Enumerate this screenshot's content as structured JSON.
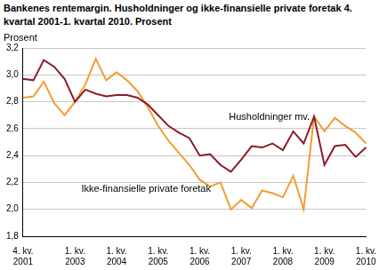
{
  "chart_data": {
    "type": "line",
    "title": "Bankenes rentemargin. Husholdninger og ikke-finansielle private foretak 4. kvartal 2001-1. kvartal 2010. Prosent",
    "y_label": "Prosent",
    "categories": [
      "4. kv. 2001",
      null,
      null,
      null,
      null,
      "1. kv. 2003",
      null,
      null,
      null,
      "1. kv. 2004",
      null,
      null,
      null,
      "1. kv. 2005",
      null,
      null,
      null,
      "1. kv. 2006",
      null,
      null,
      null,
      "1. kv. 2007",
      null,
      null,
      null,
      "1. kv. 2008",
      null,
      null,
      null,
      "1. kv. 2009",
      null,
      null,
      null,
      "1. kv. 2010"
    ],
    "series": [
      {
        "name": "Husholdninger mv.",
        "color": "#8b1c2a",
        "values": [
          2.97,
          2.96,
          3.11,
          3.06,
          2.97,
          2.8,
          2.89,
          2.86,
          2.84,
          2.85,
          2.85,
          2.83,
          2.78,
          2.7,
          2.62,
          2.57,
          2.53,
          2.4,
          2.41,
          2.33,
          2.28,
          2.37,
          2.47,
          2.46,
          2.49,
          2.44,
          2.58,
          2.49,
          2.69,
          2.33,
          2.47,
          2.48,
          2.39,
          2.46
        ]
      },
      {
        "name": "Ikke-finansielle private foretak",
        "color": "#f39c32",
        "values": [
          2.83,
          2.84,
          2.95,
          2.79,
          2.7,
          2.8,
          2.93,
          3.12,
          2.96,
          3.02,
          2.96,
          2.88,
          2.76,
          2.62,
          2.51,
          2.42,
          2.33,
          2.22,
          2.17,
          2.2,
          2.0,
          2.07,
          2.01,
          2.14,
          2.12,
          2.09,
          2.25,
          2.0,
          2.69,
          2.58,
          2.68,
          2.62,
          2.57,
          2.49
        ]
      }
    ],
    "ylim": [
      1.8,
      3.2
    ],
    "yticks": [
      {
        "value": 1.8,
        "label": "1,8"
      },
      {
        "value": 2.0,
        "label": "2,0"
      },
      {
        "value": 2.2,
        "label": "2,2"
      },
      {
        "value": 2.4,
        "label": "2,4"
      },
      {
        "value": 2.6,
        "label": "2,6"
      },
      {
        "value": 2.8,
        "label": "2,8"
      },
      {
        "value": 3.0,
        "label": "3,0"
      },
      {
        "value": 3.2,
        "label": "3,2"
      }
    ],
    "grid": true
  }
}
